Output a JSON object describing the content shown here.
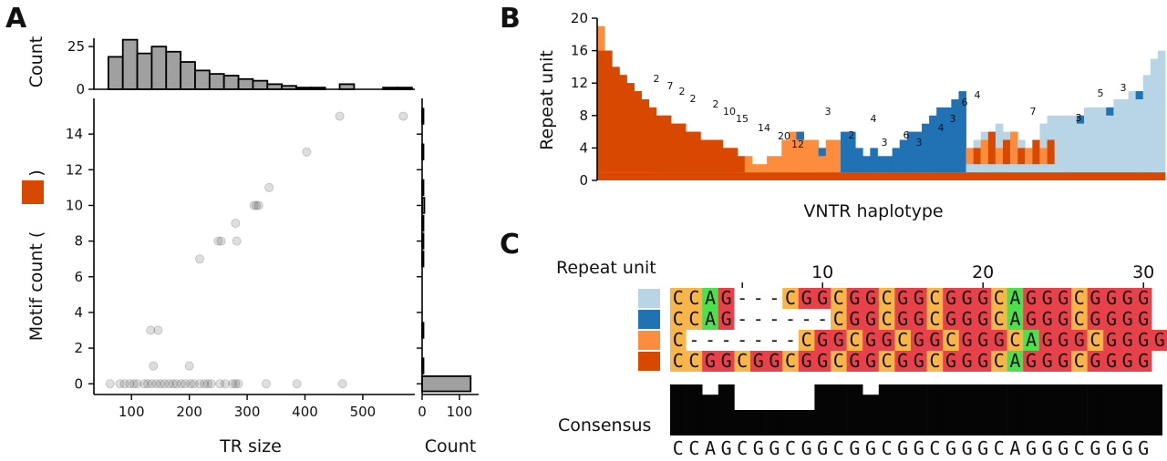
{
  "panels": {
    "a": "A",
    "b": "B",
    "c": "C"
  },
  "chart_data": [
    {
      "id": "A-top",
      "type": "bar",
      "ylabel": "Count",
      "yticks": [
        0,
        25
      ],
      "ylim": [
        0,
        32
      ],
      "bin_start": 60,
      "bin_width": 25,
      "values": [
        19,
        29,
        21,
        25,
        22,
        16,
        11,
        9,
        8,
        6,
        5,
        3,
        2,
        1,
        1,
        0,
        3,
        0,
        0,
        1,
        1
      ]
    },
    {
      "id": "A-scatter",
      "type": "scatter",
      "xlabel": "TR size",
      "ylabel": "Motif count (",
      "ylabel_suffix": ")",
      "legend_color": "#d94801",
      "xlim": [
        35,
        590
      ],
      "ylim": [
        -0.6,
        16
      ],
      "xticks": [
        100,
        200,
        300,
        400,
        500
      ],
      "yticks": [
        0,
        2,
        4,
        6,
        8,
        10,
        12,
        14
      ],
      "points": [
        [
          460,
          15
        ],
        [
          570,
          15
        ],
        [
          403,
          13
        ],
        [
          338,
          11
        ],
        [
          312,
          10
        ],
        [
          316,
          10
        ],
        [
          320,
          10
        ],
        [
          250,
          8
        ],
        [
          255,
          8
        ],
        [
          280,
          9
        ],
        [
          282,
          8
        ],
        [
          218,
          7
        ],
        [
          133,
          3
        ],
        [
          146,
          3
        ],
        [
          138,
          1
        ],
        [
          200,
          1
        ],
        [
          63,
          0
        ],
        [
          80,
          0
        ],
        [
          88,
          0
        ],
        [
          97,
          0
        ],
        [
          104,
          0
        ],
        [
          110,
          0
        ],
        [
          122,
          0
        ],
        [
          128,
          0
        ],
        [
          135,
          0
        ],
        [
          143,
          0
        ],
        [
          150,
          0
        ],
        [
          157,
          0
        ],
        [
          165,
          0
        ],
        [
          172,
          0
        ],
        [
          178,
          0
        ],
        [
          186,
          0
        ],
        [
          193,
          0
        ],
        [
          202,
          0
        ],
        [
          208,
          0
        ],
        [
          218,
          0
        ],
        [
          226,
          0
        ],
        [
          232,
          0
        ],
        [
          238,
          0
        ],
        [
          253,
          0
        ],
        [
          262,
          0
        ],
        [
          275,
          0
        ],
        [
          280,
          0
        ],
        [
          285,
          0
        ],
        [
          333,
          0
        ],
        [
          386,
          0
        ],
        [
          465,
          0
        ]
      ]
    },
    {
      "id": "A-right",
      "type": "bar",
      "orientation": "horizontal",
      "xlabel": "Count",
      "xticks": [
        0,
        100
      ],
      "xlim": [
        0,
        150
      ],
      "categories": [
        0,
        1,
        3,
        7,
        8,
        9,
        10,
        11,
        13,
        15
      ],
      "values": [
        130,
        2,
        1,
        1,
        2,
        1,
        6,
        1,
        1,
        2
      ]
    },
    {
      "id": "B",
      "type": "bar",
      "stacked": true,
      "xlabel": "VNTR haplotype",
      "ylabel": "Repeat unit",
      "ylim": [
        0,
        20
      ],
      "yticks": [
        0,
        4,
        8,
        12,
        16,
        20
      ],
      "colors": {
        "dark_orange": "#d94801",
        "light_orange": "#fd8d3c",
        "dark_blue": "#2171b5",
        "light_blue": "#b8d5e6"
      },
      "column_top_units": [
        19,
        16,
        14,
        13,
        12,
        11,
        10,
        9,
        8,
        8,
        7,
        7,
        6,
        6,
        5,
        5,
        5,
        4,
        4,
        3,
        3,
        2,
        2,
        3,
        3,
        5,
        6,
        6,
        5,
        5,
        4,
        5,
        5,
        6,
        6,
        4,
        3,
        4,
        3,
        3,
        4,
        5,
        6,
        6,
        7,
        8,
        9,
        9,
        10,
        11,
        4,
        5,
        6,
        6,
        7,
        6,
        6,
        5,
        4,
        5,
        7,
        8,
        8,
        8,
        8,
        8,
        9,
        9,
        9,
        9,
        10,
        10,
        11,
        11,
        13,
        15,
        16
      ],
      "segments": [
        [
          1,
          1,
          "dark_orange"
        ],
        [
          4,
          19,
          "dark_orange"
        ],
        [
          16,
          19,
          "light_orange"
        ],
        [
          50,
          53,
          "dark_blue"
        ]
      ],
      "annotations": [
        "2",
        "7",
        "2",
        "2",
        "2",
        "10",
        "15",
        "14",
        "20",
        "12",
        "3",
        "2",
        "4",
        "3",
        "6",
        "3",
        "4",
        "3",
        "6",
        "4",
        "7",
        "3",
        "5",
        "3"
      ]
    },
    {
      "id": "C",
      "type": "table",
      "header": "Repeat unit",
      "position_ticks": [
        10,
        20,
        30
      ],
      "rows": [
        {
          "color": "#b8d5e6",
          "seq": "CCAG---CGGCGGCGGCGGGCAGGGCGGGG"
        },
        {
          "color": "#2171b5",
          "seq": "CCAG------CGGCGGCGGGCAGGGCGGGG"
        },
        {
          "color": "#fd8d3c",
          "seq": "C-------CGGCGGCGGCGGGCAGGGCGGGG"
        },
        {
          "color": "#d94801",
          "seq": "CCGGCGGCGGCGGCGGCGGGCAGGGCGGGG"
        }
      ],
      "consensus_label": "Consensus",
      "consensus": "CCAGCGGCGGCGGCGGCGGGCAGGGCGGGG",
      "conservation": [
        1,
        1,
        0.8,
        1,
        0.5,
        0.5,
        0.5,
        0.5,
        0.5,
        1,
        1,
        1,
        0.8,
        1,
        1,
        1,
        1,
        1,
        1,
        1,
        1,
        1,
        1,
        1,
        1,
        1,
        1,
        1,
        1,
        1
      ],
      "base_colors": {
        "C": "#f7b54a",
        "G": "#e8414a",
        "A": "#4de04d",
        "-": "#ffffff"
      }
    }
  ]
}
